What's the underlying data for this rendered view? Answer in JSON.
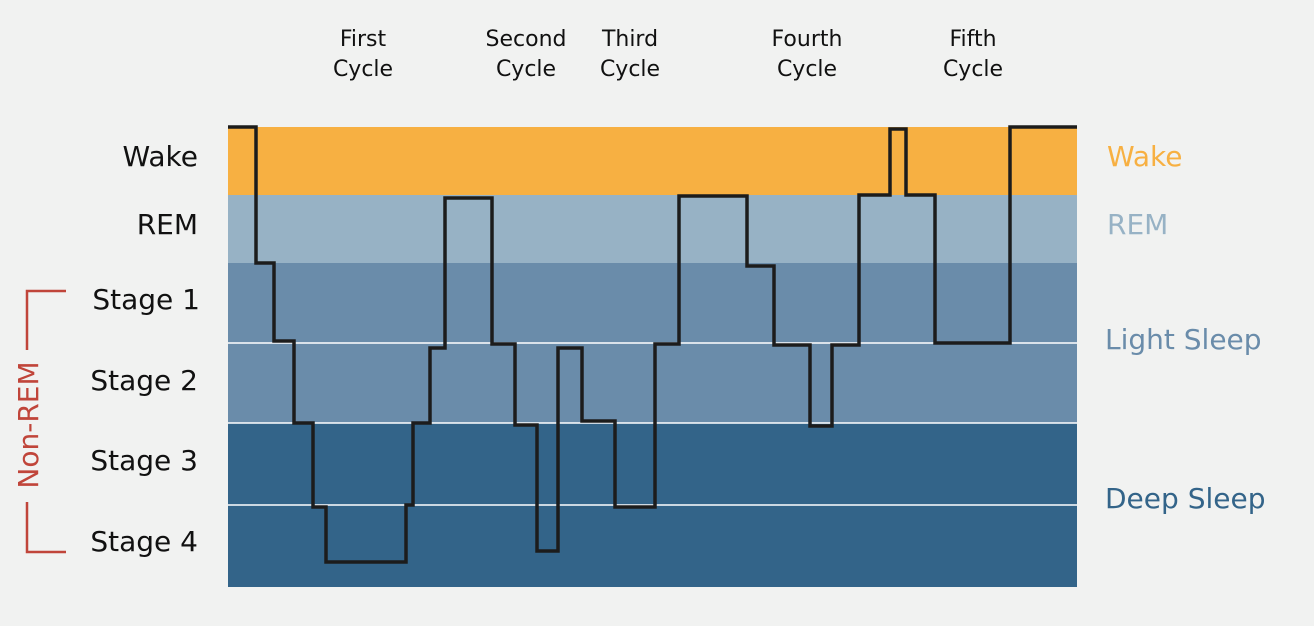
{
  "cycles": [
    {
      "line1": "First",
      "line2": "Cycle"
    },
    {
      "line1": "Second",
      "line2": "Cycle"
    },
    {
      "line1": "Third",
      "line2": "Cycle"
    },
    {
      "line1": "Fourth",
      "line2": "Cycle"
    },
    {
      "line1": "Fifth",
      "line2": "Cycle"
    }
  ],
  "stages": [
    "Wake",
    "REM",
    "Stage 1",
    "Stage 2",
    "Stage 3",
    "Stage 4"
  ],
  "non_rem_label": "Non-REM",
  "zones": [
    "Wake",
    "REM",
    "Light Sleep",
    "Deep Sleep"
  ]
}
